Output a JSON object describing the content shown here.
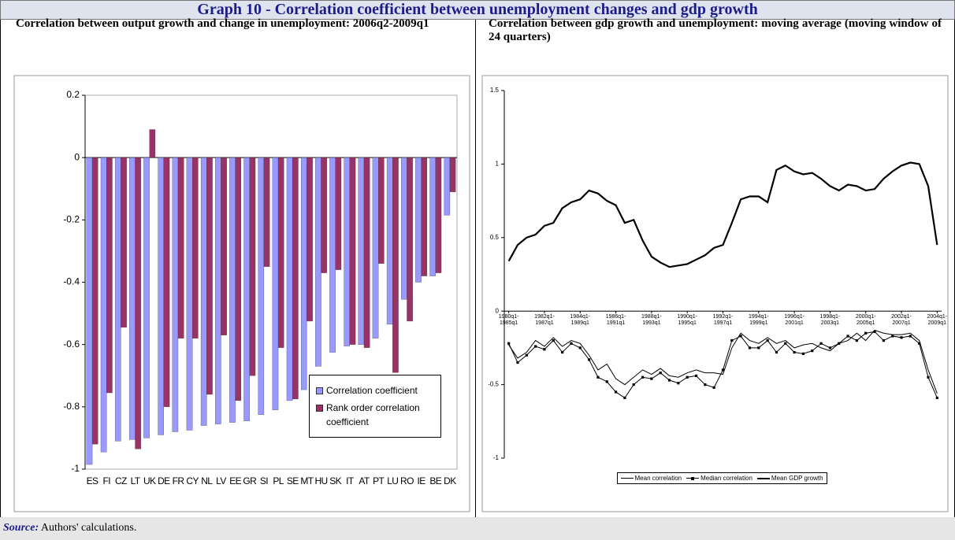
{
  "title": "Graph 10 - Correlation coefficient between unemployment changes and gdp growth",
  "source": {
    "label": "Source:",
    "text": "Authors' calculations."
  },
  "chart_data": [
    {
      "type": "bar",
      "title": "Correlation between output growth and change in unemployment: 2006q2-2009q1",
      "categories": [
        "ES",
        "FI",
        "CZ",
        "LT",
        "UK",
        "DE",
        "FR",
        "CY",
        "NL",
        "LV",
        "EE",
        "GR",
        "SI",
        "PL",
        "SE",
        "MT",
        "HU",
        "SK",
        "IT",
        "AT",
        "PT",
        "LU",
        "RO",
        "IE",
        "BE",
        "DK"
      ],
      "series": [
        {
          "name": "Correlation coefficient",
          "color": "#9999ff",
          "values": [
            -0.985,
            -0.945,
            -0.91,
            -0.905,
            -0.9,
            -0.89,
            -0.88,
            -0.875,
            -0.86,
            -0.855,
            -0.85,
            -0.845,
            -0.825,
            -0.81,
            -0.78,
            -0.745,
            -0.67,
            -0.625,
            -0.605,
            -0.6,
            -0.58,
            -0.535,
            -0.455,
            -0.4,
            -0.38,
            -0.185
          ]
        },
        {
          "name": "Rank order correlation coefficient",
          "color": "#993366",
          "values": [
            -0.92,
            -0.755,
            -0.545,
            -0.935,
            0.09,
            -0.8,
            -0.58,
            -0.58,
            -0.76,
            -0.57,
            -0.78,
            -0.7,
            -0.35,
            -0.61,
            -0.775,
            -0.525,
            -0.37,
            -0.36,
            -0.6,
            -0.61,
            -0.34,
            -0.69,
            -0.525,
            -0.38,
            -0.37,
            -0.11
          ]
        }
      ],
      "ylim": [
        -1,
        0.2
      ],
      "yticks": [
        -1,
        -0.8,
        -0.6,
        -0.4,
        -0.2,
        0,
        0.2
      ],
      "legend": "lower right"
    },
    {
      "type": "line",
      "title": "Correlation between gdp growth and unemployment: moving average (moving window of 24 quarters)",
      "categories": [
        "1980q1-1985q1",
        null,
        null,
        null,
        "1982q1-1987q1",
        null,
        null,
        null,
        "1984q1-1989q1",
        null,
        null,
        null,
        "1986q1-1991q1",
        null,
        null,
        null,
        "1988q1-1993q1",
        null,
        null,
        null,
        "1990q1-1995q1",
        null,
        null,
        null,
        "1992q1-1997q1",
        null,
        null,
        null,
        "1994q1-1999q1",
        null,
        null,
        null,
        "1996q1-2001q1",
        null,
        null,
        null,
        "1998q1-2003q1",
        null,
        null,
        null,
        "2000q1-2005q1",
        null,
        null,
        null,
        "2002q1-2007q1",
        null,
        null,
        null,
        "2004q1-2009q1"
      ],
      "series": [
        {
          "name": "Mean correlation",
          "color": "#000000",
          "line_width": 1,
          "marker": "none",
          "values": [
            -0.23,
            -0.32,
            -0.28,
            -0.2,
            -0.24,
            -0.18,
            -0.24,
            -0.2,
            -0.22,
            -0.3,
            -0.4,
            -0.36,
            -0.46,
            -0.5,
            -0.45,
            -0.4,
            -0.43,
            -0.39,
            -0.44,
            -0.45,
            -0.42,
            -0.4,
            -0.42,
            -0.42,
            -0.43,
            -0.25,
            -0.15,
            -0.2,
            -0.22,
            -0.18,
            -0.22,
            -0.2,
            -0.25,
            -0.23,
            -0.22,
            -0.25,
            -0.27,
            -0.22,
            -0.2,
            -0.15,
            -0.2,
            -0.13,
            -0.15,
            -0.16,
            -0.16,
            -0.15,
            -0.2,
            -0.4,
            -0.56
          ]
        },
        {
          "name": "Median correlation",
          "color": "#000000",
          "line_width": 1,
          "marker": "square",
          "values": [
            -0.22,
            -0.35,
            -0.3,
            -0.24,
            -0.26,
            -0.2,
            -0.28,
            -0.22,
            -0.25,
            -0.33,
            -0.45,
            -0.48,
            -0.55,
            -0.59,
            -0.5,
            -0.45,
            -0.46,
            -0.42,
            -0.47,
            -0.49,
            -0.45,
            -0.44,
            -0.5,
            -0.52,
            -0.4,
            -0.2,
            -0.17,
            -0.25,
            -0.25,
            -0.2,
            -0.28,
            -0.22,
            -0.28,
            -0.29,
            -0.27,
            -0.22,
            -0.25,
            -0.22,
            -0.17,
            -0.2,
            -0.15,
            -0.14,
            -0.2,
            -0.17,
            -0.18,
            -0.17,
            -0.22,
            -0.45,
            -0.59
          ]
        },
        {
          "name": "Mean GDP growth",
          "color": "#000000",
          "line_width": 2.2,
          "marker": "none",
          "values": [
            0.34,
            0.45,
            0.5,
            0.52,
            0.58,
            0.6,
            0.7,
            0.74,
            0.76,
            0.82,
            0.8,
            0.75,
            0.72,
            0.6,
            0.62,
            0.48,
            0.37,
            0.33,
            0.3,
            0.31,
            0.32,
            0.35,
            0.38,
            0.43,
            0.45,
            0.6,
            0.76,
            0.78,
            0.78,
            0.74,
            0.96,
            0.99,
            0.95,
            0.93,
            0.94,
            0.9,
            0.85,
            0.82,
            0.86,
            0.85,
            0.82,
            0.83,
            0.9,
            0.95,
            0.99,
            1.01,
            1.0,
            0.85,
            0.45
          ]
        }
      ],
      "ylim": [
        -1,
        1.5
      ],
      "yticks": [
        -1,
        -0.5,
        0,
        0.5,
        1,
        1.5
      ],
      "legend": "bottom"
    }
  ]
}
